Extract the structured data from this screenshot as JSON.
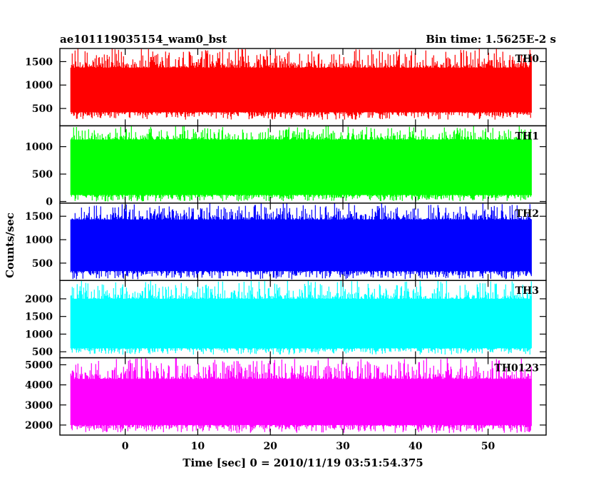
{
  "chart_data": {
    "type": "line",
    "title": "ae101119035154_wam0_bst",
    "subtitle": "Bin time: 1.5625E-2 s",
    "xlabel": "Time [sec] 0 = 2010/11/19 03:51:54.375",
    "ylabel": "Counts/sec",
    "xlim": [
      -9,
      58
    ],
    "data_x_range": [
      -7.5,
      56
    ],
    "x_ticks": [
      0,
      10,
      20,
      30,
      40,
      50
    ],
    "grid": false,
    "series": [
      {
        "name": "TH0",
        "color": "#ff0000",
        "ylim": [
          130,
          1780
        ],
        "y_ticks": [
          500,
          1000,
          1500
        ],
        "base_min": 420,
        "base_max": 1370,
        "peak_max": 1780,
        "floor_min": 260
      },
      {
        "name": "TH1",
        "color": "#00ff00",
        "ylim": [
          -30,
          1380
        ],
        "y_ticks": [
          0,
          500,
          1000
        ],
        "base_min": 120,
        "base_max": 1130,
        "peak_max": 1380,
        "floor_min": 0
      },
      {
        "name": "TH2",
        "color": "#0000ff",
        "ylim": [
          130,
          1780
        ],
        "y_ticks": [
          500,
          1000,
          1500
        ],
        "base_min": 330,
        "base_max": 1430,
        "peak_max": 1780,
        "floor_min": 150
      },
      {
        "name": "TH3",
        "color": "#00ffff",
        "ylim": [
          330,
          2520
        ],
        "y_ticks": [
          500,
          1000,
          1500,
          2000
        ],
        "base_min": 600,
        "base_max": 2000,
        "peak_max": 2520,
        "floor_min": 420
      },
      {
        "name": "TH0123",
        "color": "#ff00ff",
        "ylim": [
          1500,
          5350
        ],
        "y_ticks": [
          2000,
          3000,
          4000,
          5000
        ],
        "base_min": 2000,
        "base_max": 4300,
        "peak_max": 5350,
        "floor_min": 1600
      }
    ]
  }
}
